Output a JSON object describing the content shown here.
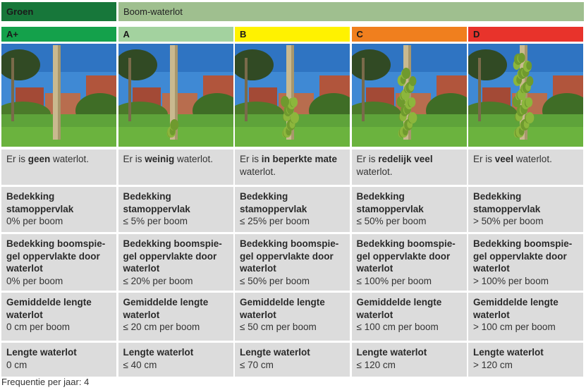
{
  "header": {
    "groen": "Groen",
    "title": "Boom-waterlot"
  },
  "columns": [
    {
      "grade": "A+",
      "color": "#14a14b",
      "desc_pre": "Er is ",
      "desc_bold": "geen",
      "desc_post": " waterlot.",
      "stam_label": "Bedekking stamoppervlak",
      "stam_value": "0% per boom",
      "spiegel_label": "Bedekking boomspie-gel oppervlakte door waterlot",
      "spiegel_value": "0% per boom",
      "gem_label": "Gemiddelde lengte waterlot",
      "gem_value": "0 cm per boom",
      "lengte_label": "Lengte waterlot",
      "lengte_value": "0 cm"
    },
    {
      "grade": "A",
      "color": "#a3d29f",
      "desc_pre": "Er is ",
      "desc_bold": "weinig",
      "desc_post": " waterlot.",
      "stam_label": "Bedekking stamoppervlak",
      "stam_value": "≤ 5% per boom",
      "spiegel_label": "Bedekking boomspie-gel oppervlakte door waterlot",
      "spiegel_value": "≤ 20% per boom",
      "gem_label": "Gemiddelde lengte waterlot",
      "gem_value": "≤ 20 cm per boom",
      "lengte_label": "Lengte waterlot",
      "lengte_value": "≤ 40 cm"
    },
    {
      "grade": "B",
      "color": "#fff200",
      "desc_pre": "Er is ",
      "desc_bold": "in beperkte mate",
      "desc_post": " waterlot.",
      "stam_label": "Bedekking stamoppervlak",
      "stam_value": "≤ 25% per boom",
      "spiegel_label": "Bedekking boomspie-gel oppervlakte door waterlot",
      "spiegel_value": "≤ 50% per boom",
      "gem_label": "Gemiddelde lengte waterlot",
      "gem_value": "≤ 50 cm per boom",
      "lengte_label": "Lengte waterlot",
      "lengte_value": "≤ 70 cm"
    },
    {
      "grade": "C",
      "color": "#f07f1e",
      "desc_pre": "Er is ",
      "desc_bold": "redelijk veel",
      "desc_post": " waterlot.",
      "stam_label": "Bedekking stamoppervlak",
      "stam_value": "≤ 50% per boom",
      "spiegel_label": "Bedekking boomspie-gel oppervlakte door waterlot",
      "spiegel_value": "≤ 100% per boom",
      "gem_label": "Gemiddelde lengte waterlot",
      "gem_value": "≤ 100 cm per boom",
      "lengte_label": "Lengte waterlot",
      "lengte_value": "≤ 120 cm"
    },
    {
      "grade": "D",
      "color": "#e8332b",
      "desc_pre": "Er is ",
      "desc_bold": "veel",
      "desc_post": " waterlot.",
      "stam_label": "Bedekking stamoppervlak",
      "stam_value": "> 50% per boom",
      "spiegel_label": "Bedekking boomspie-gel oppervlakte door waterlot",
      "spiegel_value": "> 100% per boom",
      "gem_label": "Gemiddelde lengte waterlot",
      "gem_value": "> 100 cm per boom",
      "lengte_label": "Lengte waterlot",
      "lengte_value": "> 120 cm"
    }
  ],
  "footer": "Frequentie per jaar: 4"
}
